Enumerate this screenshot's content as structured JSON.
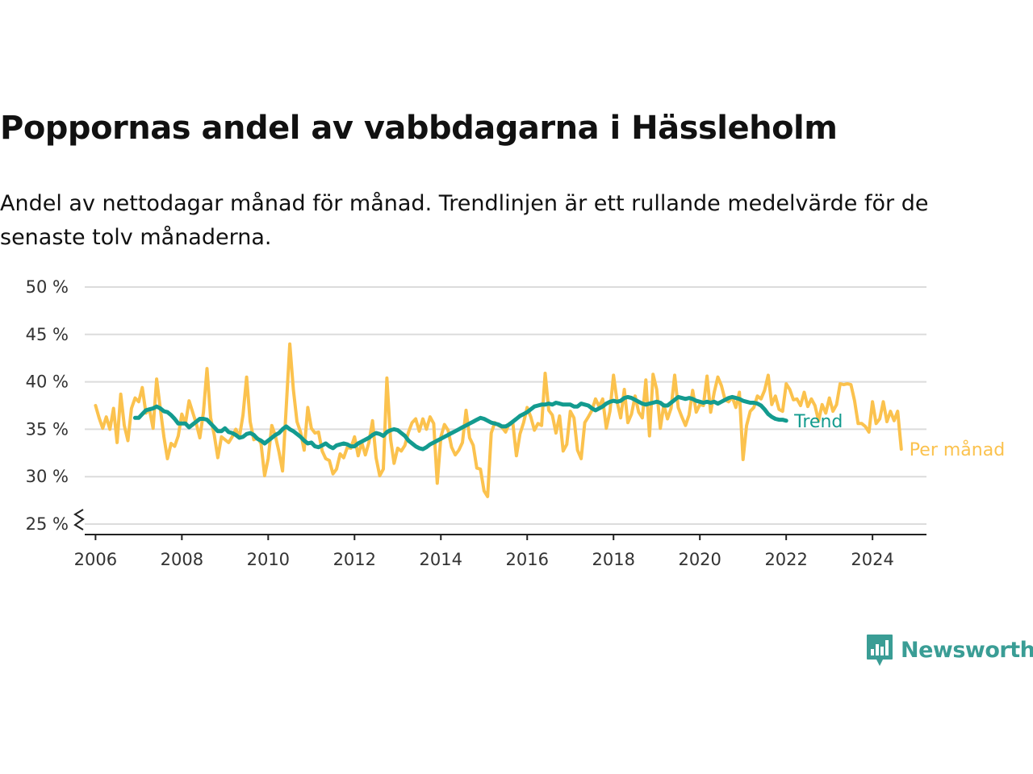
{
  "header": {
    "title": "Poppornas andel av vabbdagarna i Hässleholm",
    "subtitle": "Andel av nettodagar månad för månad. Trendlinjen är ett rullande medelvärde för de senaste tolv månaderna."
  },
  "brand": {
    "name": "Newsworthy",
    "icon": "newsworthy-logo-icon",
    "color": "#3a9d95"
  },
  "chart_data": {
    "type": "line",
    "title": "Poppornas andel av vabbdagarna i Hässleholm",
    "y_unit": "%",
    "ylim": [
      25,
      50
    ],
    "y_ticks": [
      25,
      30,
      35,
      40,
      45,
      50
    ],
    "y_tick_labels": [
      "25 %",
      "30 %",
      "35 %",
      "40 %",
      "45 %",
      "50 %"
    ],
    "y_axis_break": true,
    "xlim": [
      "2005-10",
      "2025-04"
    ],
    "x_ticks": [
      "2006-01",
      "2008-01",
      "2010-01",
      "2012-01",
      "2014-01",
      "2016-01",
      "2018-01",
      "2020-01",
      "2022-01",
      "2024-01"
    ],
    "x_tick_labels": [
      "2006",
      "2008",
      "2010",
      "2012",
      "2014",
      "2016",
      "2018",
      "2020",
      "2022",
      "2024"
    ],
    "grid": "horizontal",
    "legend": "direct labels at line ends",
    "series": [
      {
        "name": "Per månad",
        "color": "#fbc24e",
        "start": "2006-01",
        "values": [
          37.5,
          36.2,
          35.1,
          36.3,
          35.0,
          37.2,
          33.6,
          38.7,
          35.4,
          33.8,
          37.2,
          38.3,
          37.9,
          39.4,
          36.7,
          37.1,
          35.1,
          40.3,
          37.2,
          34.2,
          31.9,
          33.5,
          33.2,
          34.3,
          36.6,
          35.6,
          38.0,
          36.8,
          35.6,
          34.1,
          36.8,
          41.4,
          36.2,
          34.4,
          32.0,
          34.2,
          33.9,
          33.6,
          34.2,
          35.0,
          34.2,
          36.5,
          40.5,
          35.8,
          33.9,
          34.1,
          33.5,
          30.1,
          31.9,
          35.4,
          34.3,
          32.6,
          30.6,
          37.2,
          44.0,
          39.2,
          35.8,
          34.7,
          32.8,
          37.3,
          35.1,
          34.6,
          34.7,
          32.7,
          31.9,
          31.7,
          30.3,
          30.8,
          32.4,
          32.0,
          33.1,
          33.0,
          34.2,
          32.2,
          33.6,
          32.3,
          33.6,
          35.9,
          32.0,
          30.1,
          30.8,
          40.4,
          34.0,
          31.4,
          33.0,
          32.7,
          33.3,
          34.7,
          35.7,
          36.1,
          34.8,
          36.1,
          35.0,
          36.3,
          35.6,
          29.3,
          34.2,
          35.5,
          34.9,
          33.1,
          32.3,
          32.8,
          33.6,
          37.0,
          34.1,
          33.3,
          30.9,
          30.8,
          28.5,
          27.9,
          34.6,
          35.7,
          35.4,
          35.2,
          34.7,
          35.6,
          35.7,
          32.2,
          34.5,
          35.7,
          37.3,
          36.3,
          34.9,
          35.6,
          35.4,
          40.9,
          37.0,
          36.5,
          34.6,
          36.4,
          32.7,
          33.4,
          36.9,
          36.2,
          32.8,
          31.9,
          35.7,
          36.3,
          37.0,
          38.2,
          37.4,
          38.2,
          35.1,
          36.9,
          40.7,
          37.9,
          36.2,
          39.2,
          35.7,
          36.6,
          38.5,
          36.8,
          36.2,
          40.2,
          34.3,
          40.8,
          39.2,
          35.1,
          37.6,
          36.1,
          37.2,
          40.7,
          37.3,
          36.3,
          35.4,
          36.5,
          39.1,
          36.8,
          37.6,
          37.5,
          40.6,
          36.8,
          38.9,
          40.5,
          39.6,
          38.1,
          37.9,
          38.4,
          37.3,
          38.9,
          31.8,
          35.4,
          36.9,
          37.3,
          38.5,
          38.2,
          39.1,
          40.7,
          37.6,
          38.5,
          37.1,
          36.9,
          39.8,
          39.2,
          38.1,
          38.2,
          37.5,
          38.9,
          37.4,
          38.2,
          37.5,
          35.9,
          37.6,
          36.7,
          38.3,
          36.9,
          37.6,
          39.8,
          39.7,
          39.8,
          39.7,
          38.0,
          35.6,
          35.6,
          35.3,
          34.7,
          37.9,
          35.6,
          36.1,
          37.9,
          35.8,
          36.9,
          35.9,
          36.9,
          32.9
        ]
      },
      {
        "name": "Trend",
        "color": "#139b8f",
        "start": "2006-12",
        "values": [
          36.2,
          36.2,
          36.6,
          37.0,
          37.1,
          37.2,
          37.4,
          37.2,
          36.9,
          36.8,
          36.5,
          36.1,
          35.6,
          35.6,
          35.6,
          35.2,
          35.5,
          35.8,
          36.1,
          36.1,
          36.0,
          35.6,
          35.2,
          34.8,
          34.8,
          35.1,
          34.7,
          34.6,
          34.4,
          34.1,
          34.2,
          34.5,
          34.6,
          34.4,
          34.0,
          33.8,
          33.5,
          33.8,
          34.1,
          34.4,
          34.6,
          35.0,
          35.3,
          35.0,
          34.8,
          34.5,
          34.2,
          33.8,
          33.5,
          33.6,
          33.2,
          33.1,
          33.3,
          33.5,
          33.2,
          33.0,
          33.3,
          33.4,
          33.5,
          33.4,
          33.2,
          33.2,
          33.5,
          33.7,
          33.9,
          34.1,
          34.4,
          34.6,
          34.5,
          34.3,
          34.7,
          34.9,
          35.0,
          34.9,
          34.6,
          34.3,
          33.8,
          33.5,
          33.2,
          33.0,
          32.9,
          33.1,
          33.4,
          33.6,
          33.8,
          34.0,
          34.2,
          34.4,
          34.6,
          34.8,
          35.0,
          35.2,
          35.4,
          35.6,
          35.8,
          36.0,
          36.2,
          36.1,
          35.9,
          35.7,
          35.6,
          35.5,
          35.3,
          35.3,
          35.5,
          35.8,
          36.1,
          36.4,
          36.6,
          36.8,
          37.1,
          37.4,
          37.5,
          37.6,
          37.6,
          37.7,
          37.6,
          37.8,
          37.7,
          37.6,
          37.6,
          37.6,
          37.4,
          37.4,
          37.7,
          37.6,
          37.5,
          37.2,
          37.0,
          37.2,
          37.4,
          37.7,
          37.9,
          38.0,
          37.9,
          38.0,
          38.3,
          38.4,
          38.3,
          38.1,
          37.9,
          37.7,
          37.6,
          37.7,
          37.8,
          37.9,
          37.8,
          37.5,
          37.5,
          37.8,
          38.1,
          38.4,
          38.3,
          38.2,
          38.3,
          38.2,
          38.0,
          37.9,
          37.8,
          37.9,
          37.8,
          37.9,
          37.7,
          37.9,
          38.1,
          38.3,
          38.4,
          38.3,
          38.2,
          38.0,
          37.9,
          37.8,
          37.8,
          37.7,
          37.5,
          37.1,
          36.6,
          36.3,
          36.1,
          36.0,
          36.0,
          35.9
        ]
      }
    ]
  }
}
